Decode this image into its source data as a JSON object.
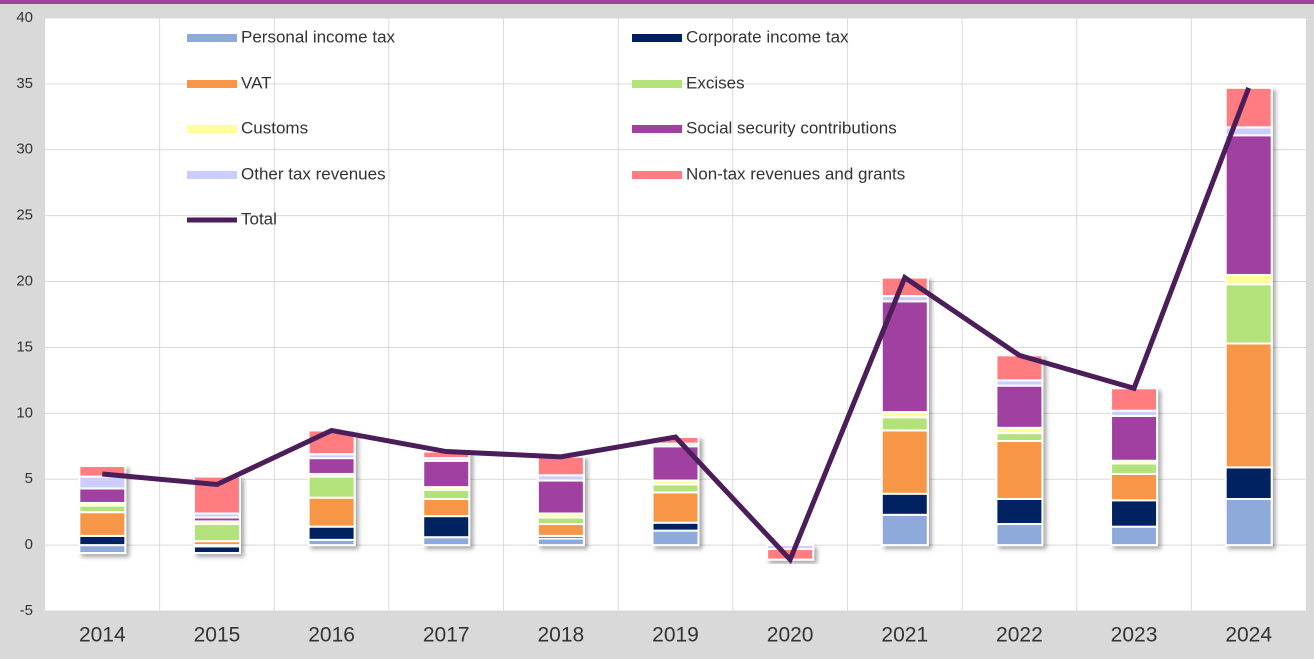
{
  "chart_data": {
    "type": "bar",
    "categories": [
      "2014",
      "2015",
      "2016",
      "2017",
      "2018",
      "2019",
      "2020",
      "2021",
      "2022",
      "2023",
      "2024"
    ],
    "series": [
      {
        "name": "Personal income tax",
        "color": "#8eaadb",
        "values": [
          -0.6,
          -0.1,
          0.4,
          0.6,
          0.5,
          1.1,
          0,
          2.3,
          1.6,
          1.4,
          3.5
        ]
      },
      {
        "name": "Corporate income tax",
        "color": "#002060",
        "values": [
          0.7,
          -0.5,
          1.0,
          1.6,
          0.2,
          0.6,
          0,
          1.6,
          1.9,
          2.0,
          2.4
        ]
      },
      {
        "name": "VAT",
        "color": "#f79646",
        "values": [
          1.8,
          0.3,
          2.2,
          1.3,
          0.9,
          2.3,
          0,
          4.8,
          4.4,
          2.0,
          9.4
        ]
      },
      {
        "name": "Excises",
        "color": "#b3e27a",
        "values": [
          0.5,
          1.3,
          1.6,
          0.7,
          0.5,
          0.6,
          0,
          1.0,
          0.6,
          0.8,
          4.5
        ]
      },
      {
        "name": "Customs",
        "color": "#ffff99",
        "values": [
          0.2,
          0.2,
          0.2,
          0.2,
          0.3,
          0.3,
          0,
          0.4,
          0.4,
          0.2,
          0.7
        ]
      },
      {
        "name": "Social security contributions",
        "color": "#a040a0",
        "values": [
          1.1,
          0.3,
          1.2,
          2.0,
          2.5,
          2.6,
          0,
          8.4,
          3.2,
          3.4,
          10.6
        ]
      },
      {
        "name": "Other tax revenues",
        "color": "#ccccff",
        "values": [
          0.9,
          0.3,
          0.3,
          0.2,
          0.4,
          0.2,
          -0.3,
          0.4,
          0.4,
          0.4,
          0.6
        ]
      },
      {
        "name": "Non-tax revenues and grants",
        "color": "#ff7c80",
        "values": [
          0.8,
          2.8,
          1.8,
          0.5,
          1.4,
          0.5,
          -0.8,
          1.4,
          1.9,
          1.7,
          3.0
        ]
      }
    ],
    "total": {
      "name": "Total",
      "color": "#4b1e5a",
      "values": [
        5.4,
        4.6,
        8.7,
        7.1,
        6.7,
        8.2,
        -1.1,
        20.3,
        14.4,
        11.9,
        34.7
      ]
    },
    "ylim": [
      -5,
      40
    ],
    "yticks": [
      -5,
      0,
      5,
      10,
      15,
      20,
      25,
      30,
      35,
      40
    ],
    "grid": true
  }
}
